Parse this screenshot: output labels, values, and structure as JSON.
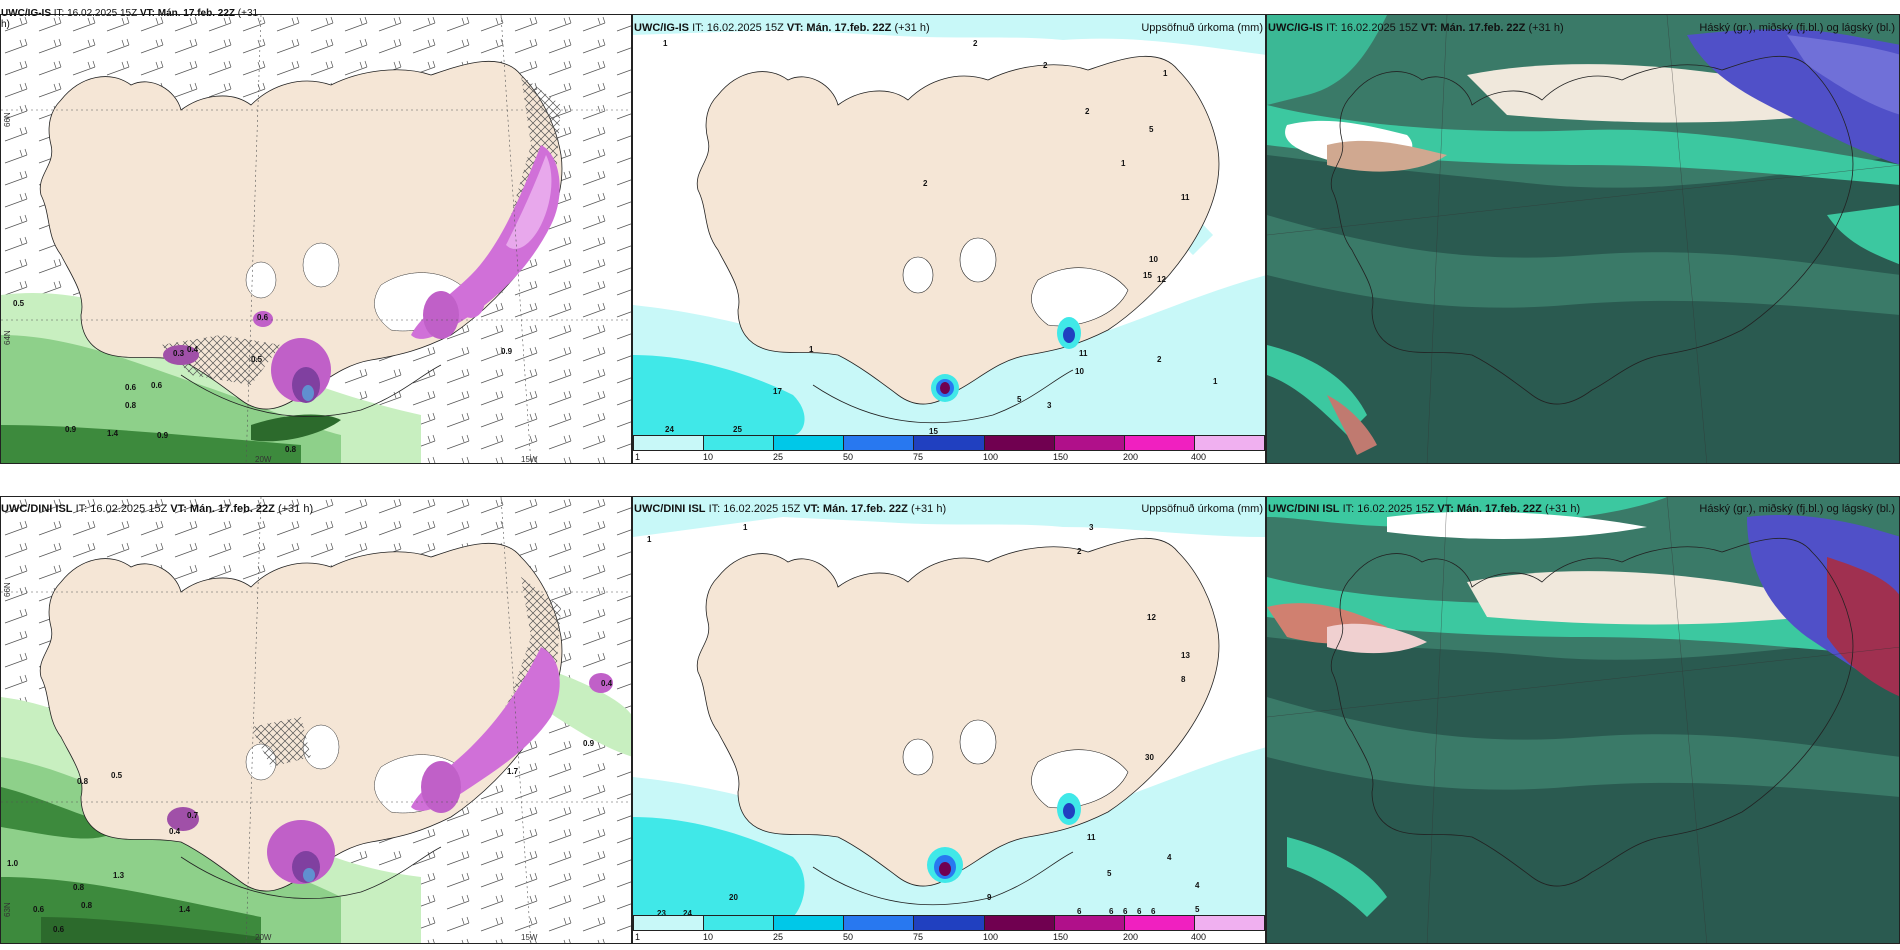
{
  "panels": [
    {
      "id": "top-left",
      "title_model": "UWC/IG-IS",
      "title_it": "IT: 16.02.2025 15Z",
      "title_vt": "VT: Mán. 17.feb. 22Z",
      "title_lead": "(+31",
      "title_lead2": "h)"
    },
    {
      "id": "top-mid",
      "title_model": "UWC/IG-IS",
      "title_it": "IT: 16.02.2025 15Z",
      "title_vt": "VT: Mán. 17.feb. 22Z",
      "title_lead": "(+31 h)",
      "right_label": "Uppsöfnuð úrkoma (mm)"
    },
    {
      "id": "top-right",
      "title_model": "UWC/IG-IS",
      "title_it": "IT: 16.02.2025 15Z",
      "title_vt": "VT: Mán. 17.feb. 22Z",
      "title_lead": "(+31 h)",
      "right_label": "Háský (gr.), miðský (fj.bl.) og lágský (bl.)"
    },
    {
      "id": "bottom-left",
      "title_model": "UWC/DINI ISL",
      "title_it": "IT: 16.02.2025 15Z",
      "title_vt": "VT: Mán. 17.feb. 22Z",
      "title_lead": "(+31 h)"
    },
    {
      "id": "bottom-mid",
      "title_model": "UWC/DINI ISL",
      "title_it": "IT: 16.02.2025 15Z",
      "title_vt": "VT: Mán. 17.feb. 22Z",
      "title_lead": "(+31 h)",
      "right_label": "Uppsöfnuð úrkoma (mm)"
    },
    {
      "id": "bottom-right",
      "title_model": "UWC/DINI ISL",
      "title_it": "IT: 16.02.2025 15Z",
      "title_vt": "VT: Mán. 17.feb. 22Z",
      "title_lead": "(+31 h)",
      "right_label": "Háský (gr.), miðský (fj.bl.) og lágský (bl.)"
    }
  ],
  "axes": {
    "lat_top": "66N",
    "lat_bottom": "64N",
    "lat_low": "63N",
    "lon_left": "20W",
    "lon_right": "15W"
  },
  "colorbar": {
    "labels": [
      "1",
      "10",
      "25",
      "50",
      "75",
      "100",
      "150",
      "200",
      "400"
    ],
    "colors": [
      "#c8f8f8",
      "#40e8e8",
      "#00c8e8",
      "#2878f0",
      "#2040c0",
      "#700050",
      "#b0108a",
      "#f020c0",
      "#f0b0f0"
    ]
  },
  "precip_labels_top": [
    "1",
    "2",
    "2",
    "1",
    "2",
    "1",
    "2",
    "5",
    "11",
    "10",
    "15",
    "12",
    "17",
    "24",
    "25",
    "15",
    "5",
    "3",
    "10",
    "11",
    "2",
    "1",
    "1"
  ],
  "precip_labels_bottom": [
    "1",
    "1",
    "2",
    "3",
    "12",
    "13",
    "8",
    "30",
    "11",
    "20",
    "23",
    "24",
    "9",
    "6",
    "5",
    "4",
    "4",
    "5",
    "6",
    "6",
    "6",
    "6"
  ],
  "wind_labels_top": [
    "0.5",
    "0.6",
    "0.6",
    "0.8",
    "0.9",
    "1.4",
    "0.9",
    "0.8",
    "0.5",
    "0.9",
    "0.3",
    "0.4",
    "0.6"
  ],
  "wind_labels_bottom": [
    "0.8",
    "0.5",
    "1.0",
    "0.8",
    "0.6",
    "0.8",
    "1.4",
    "0.6",
    "1.7",
    "0.9",
    "0.4",
    "0.7",
    "0.4",
    "1.3"
  ],
  "land_color": "#f5e6d6",
  "snow_color": "#ffffff",
  "cloud_high": "#3cc8a0",
  "cloud_dark": "#2a5a50",
  "cloud_mid": "#5050c8"
}
